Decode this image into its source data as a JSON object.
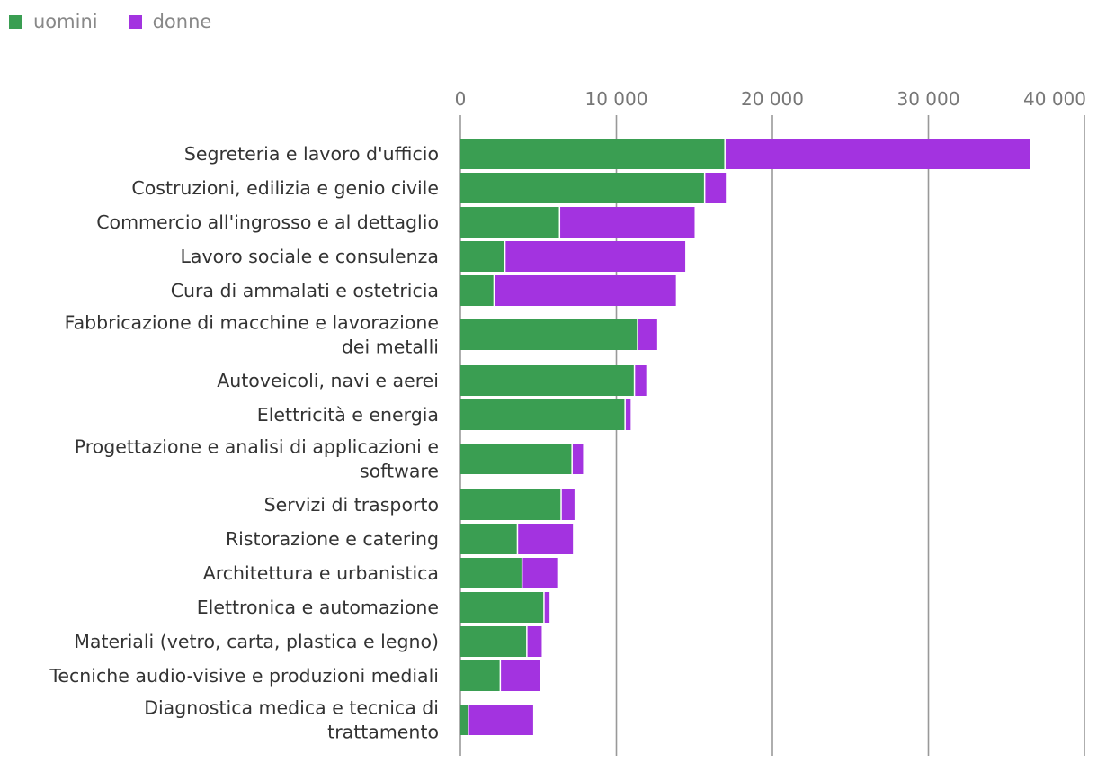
{
  "legend": [
    {
      "label": "uomini",
      "color": "#3a9e52"
    },
    {
      "label": "donne",
      "color": "#a333e0"
    }
  ],
  "chart_data": {
    "type": "bar",
    "orientation": "horizontal",
    "stacked": true,
    "title": "",
    "xlabel": "",
    "ylabel": "",
    "xlim": [
      0,
      40000
    ],
    "x_ticks": [
      0,
      10000,
      20000,
      30000,
      40000
    ],
    "x_tick_labels": [
      "0",
      "10 000",
      "20 000",
      "30 000",
      "40 000"
    ],
    "categories": [
      [
        "Segreteria e lavoro d'ufficio"
      ],
      [
        "Costruzioni, edilizia e genio civile"
      ],
      [
        "Commercio all'ingrosso e al dettaglio"
      ],
      [
        "Lavoro sociale e consulenza"
      ],
      [
        "Cura di ammalati e ostetricia"
      ],
      [
        "Fabbricazione di macchine e lavorazione",
        "dei metalli"
      ],
      [
        "Autoveicoli, navi e aerei"
      ],
      [
        "Elettricità e energia"
      ],
      [
        "Progettazione e analisi di applicazioni e",
        "software"
      ],
      [
        "Servizi di trasporto"
      ],
      [
        "Ristorazione e catering"
      ],
      [
        "Architettura e urbanistica"
      ],
      [
        "Elettronica e automazione"
      ],
      [
        "Materiali (vetro, carta, plastica e legno)"
      ],
      [
        "Tecniche audio-visive e produzioni mediali"
      ],
      [
        "Diagnostica medica e tecnica di",
        "trattamento"
      ]
    ],
    "series": [
      {
        "name": "uomini",
        "color": "#3a9e52",
        "values": [
          17000,
          15700,
          6400,
          2900,
          2200,
          11400,
          11200,
          10600,
          7200,
          6500,
          3700,
          4000,
          5400,
          4300,
          2600,
          550
        ]
      },
      {
        "name": "donne",
        "color": "#a333e0",
        "values": [
          19600,
          1400,
          8700,
          11600,
          11700,
          1300,
          800,
          400,
          750,
          900,
          3600,
          2350,
          400,
          1000,
          2600,
          4200
        ]
      }
    ]
  }
}
